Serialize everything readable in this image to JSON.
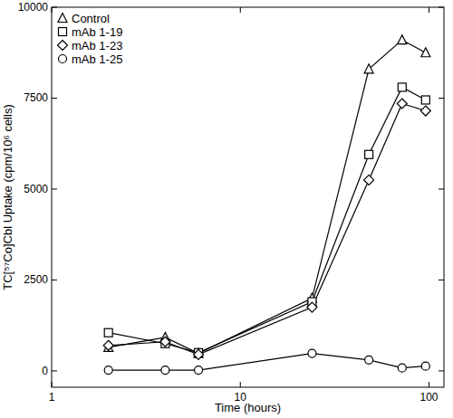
{
  "chart_data": {
    "type": "line",
    "x_label": "Time (hours)",
    "y_label": "TC[⁵⁷Co]Cbl Uptake (cpm/10⁶ cells)",
    "log": "x",
    "x": [
      2,
      4,
      6,
      24,
      48,
      72,
      96
    ],
    "xlim": [
      1,
      120
    ],
    "xticks": [
      1,
      10,
      100
    ],
    "ylim": [
      -450,
      10000
    ],
    "yticks": [
      0,
      2500,
      5000,
      7500,
      10000
    ],
    "grid": false,
    "legend": "top-left",
    "series": [
      {
        "name": "Control",
        "color": "#000000",
        "marker": "triangle",
        "line_style": "solid",
        "values": [
          650,
          920,
          480,
          2000,
          8300,
          9100,
          8750
        ]
      },
      {
        "name": "mAb 1-19",
        "color": "#000000",
        "marker": "square",
        "line_style": "solid",
        "values": [
          1050,
          750,
          500,
          1900,
          5950,
          7800,
          7450
        ]
      },
      {
        "name": "mAb 1-23",
        "color": "#000000",
        "marker": "diamond",
        "line_style": "solid",
        "values": [
          700,
          800,
          450,
          1750,
          5250,
          7350,
          7150
        ]
      },
      {
        "name": "mAb 1-25",
        "color": "#000000",
        "marker": "circle",
        "line_style": "solid",
        "values": [
          20,
          20,
          20,
          480,
          300,
          80,
          130
        ]
      }
    ]
  }
}
